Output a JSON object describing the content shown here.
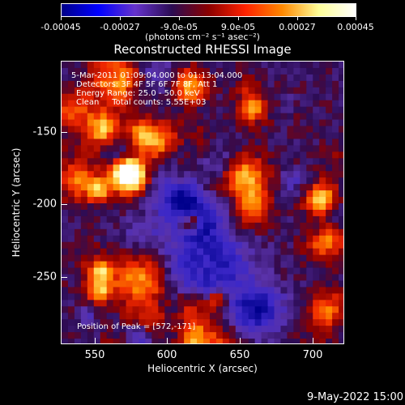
{
  "colorbar": {
    "tick_labels": [
      "-0.00045",
      "-0.00027",
      "-9.0e-05",
      "9.0e-05",
      "0.00027",
      "0.00045"
    ],
    "units": "(photons cm⁻² s⁻¹ asec⁻²)",
    "colors": [
      "#000088",
      "#0000ff",
      "#6633cc",
      "#2b0c53",
      "#8b0000",
      "#ff2200",
      "#ff8800",
      "#ffff99",
      "#ffffff"
    ]
  },
  "title": "Reconstructed RHESSI Image",
  "info": {
    "time": "5-Mar-2011 01:09:04.000 to 01:13:04.000",
    "detectors": "Detectors: 3F 4F 5F 6F 7F 8F, Att 1",
    "energy": "Energy Range: 25.0 - 50.0 keV",
    "method": "Clean     Total counts: 5.55E+03",
    "peak": "Position of Peak = [572,-171]"
  },
  "axes": {
    "xlabel": "Heliocentric X (arcsec)",
    "ylabel": "Heliocentric Y (arcsec)",
    "xticks": [
      "550",
      "600",
      "650",
      "700"
    ],
    "yticks": [
      "-150",
      "-200",
      "-250"
    ],
    "xrange": [
      527,
      720
    ],
    "yrange": [
      -295,
      -100
    ]
  },
  "footer": {
    "date": "9-May-2022 15:00"
  }
}
